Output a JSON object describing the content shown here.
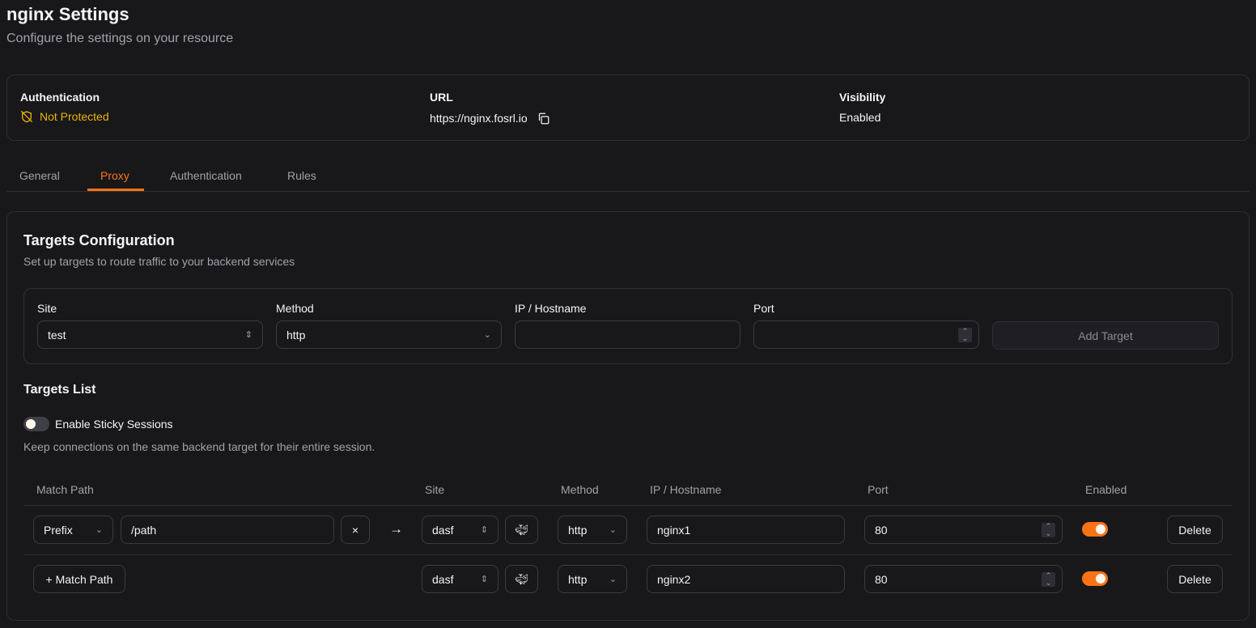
{
  "header": {
    "title": "nginx Settings",
    "subtitle": "Configure the settings on your resource"
  },
  "info": {
    "authentication": {
      "label": "Authentication",
      "value": "Not Protected",
      "icon": "shield-off-icon",
      "color": "#eab308"
    },
    "url": {
      "label": "URL",
      "value": "https://nginx.fosrl.io",
      "icon": "copy-icon"
    },
    "visibility": {
      "label": "Visibility",
      "value": "Enabled"
    }
  },
  "tabs": [
    {
      "label": "General"
    },
    {
      "label": "Proxy",
      "active": true
    },
    {
      "label": "Authentication"
    },
    {
      "label": "Rules"
    }
  ],
  "accent": "#f97316",
  "targets_config": {
    "title": "Targets Configuration",
    "description": "Set up targets to route traffic to your backend services",
    "form": {
      "site_label": "Site",
      "site_value": "test",
      "method_label": "Method",
      "method_value": "http",
      "ip_label": "IP / Hostname",
      "ip_value": "",
      "port_label": "Port",
      "port_value": "",
      "add_button": "Add Target"
    }
  },
  "targets_list": {
    "title": "Targets List",
    "sticky_label": "Enable Sticky Sessions",
    "sticky_enabled": false,
    "sticky_description": "Keep connections on the same backend target for their entire session.",
    "columns": [
      "Match Path",
      "Site",
      "Method",
      "IP / Hostname",
      "Port",
      "Enabled"
    ],
    "rows": [
      {
        "match_type": "Prefix",
        "path": "/path",
        "clear": "×",
        "arrow": "→",
        "site": "dasf",
        "method": "http",
        "ip": "nginx1",
        "port": "80",
        "enabled": true,
        "delete": "Delete"
      },
      {
        "add_match": "+ Match Path",
        "site": "dasf",
        "method": "http",
        "ip": "nginx2",
        "port": "80",
        "enabled": true,
        "delete": "Delete"
      }
    ]
  }
}
